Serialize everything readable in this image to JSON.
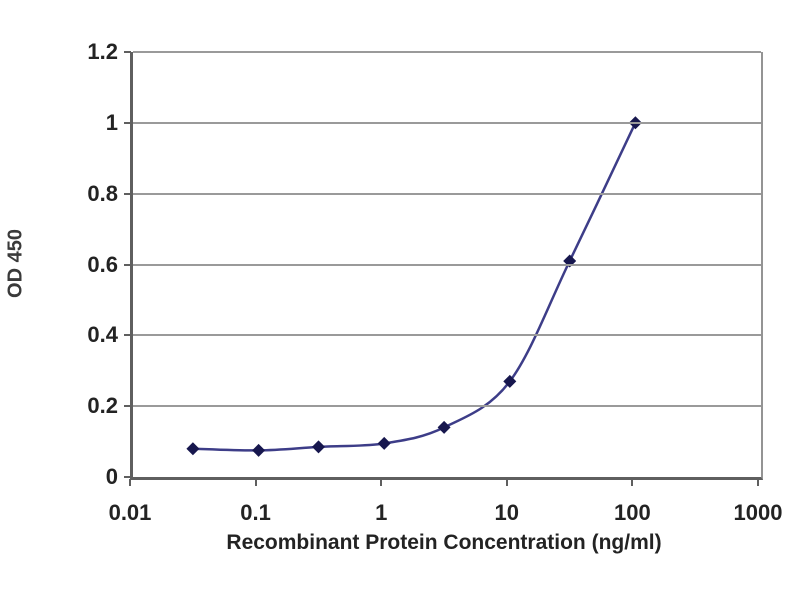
{
  "chart_data": {
    "type": "line",
    "title": "",
    "xlabel": "Recombinant Protein Concentration (ng/ml)",
    "ylabel": "OD 450",
    "x_scale": "log",
    "xlim": [
      0.01,
      1000
    ],
    "ylim": [
      0,
      1.2
    ],
    "x_ticks": [
      0.01,
      0.1,
      1,
      10,
      100,
      1000
    ],
    "x_tick_labels": [
      "0.01",
      "0.1",
      "1",
      "10",
      "100",
      "1000"
    ],
    "y_ticks": [
      0,
      0.2,
      0.4,
      0.6,
      0.8,
      1,
      1.2
    ],
    "y_tick_labels": [
      "0",
      "0.2",
      "0.4",
      "0.6",
      "0.8",
      "1",
      "1.2"
    ],
    "grid": "horizontal",
    "legend": "none",
    "series": [
      {
        "name": "OD450",
        "marker": "diamond",
        "line_color": "#3d3d88",
        "marker_color": "#17174e",
        "points": [
          {
            "x": 0.03,
            "y": 0.08
          },
          {
            "x": 0.1,
            "y": 0.075
          },
          {
            "x": 0.3,
            "y": 0.085
          },
          {
            "x": 1,
            "y": 0.095
          },
          {
            "x": 3,
            "y": 0.14
          },
          {
            "x": 10,
            "y": 0.27
          },
          {
            "x": 30,
            "y": 0.61
          },
          {
            "x": 100,
            "y": 1.0
          }
        ]
      }
    ],
    "colors": {
      "gridline": "#9a9a9a",
      "axis": "#5f5f5f",
      "tick_text": "#232323",
      "background": "#ffffff"
    }
  }
}
